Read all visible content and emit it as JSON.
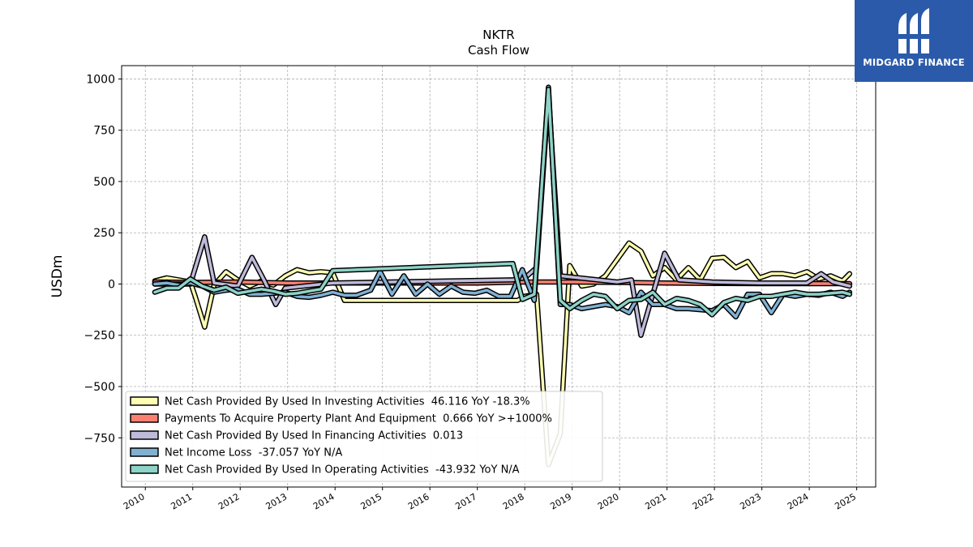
{
  "chart_data": {
    "type": "line",
    "title": "NKTR",
    "subtitle": "Cash Flow",
    "ylabel": "USDm",
    "xlabel": "",
    "xlim": [
      2009.5,
      2025.4
    ],
    "ylim": [
      -990,
      1065
    ],
    "x_ticks": [
      "2010",
      "2011",
      "2012",
      "2013",
      "2014",
      "2015",
      "2016",
      "2017",
      "2018",
      "2019",
      "2020",
      "2021",
      "2022",
      "2023",
      "2024",
      "2025"
    ],
    "y_ticks": [
      -750,
      -500,
      -250,
      0,
      250,
      500,
      750,
      1000
    ],
    "y_tick_labels": [
      "−750",
      "−500",
      "−250",
      "0",
      "250",
      "500",
      "750",
      "1000"
    ],
    "grid": true,
    "legend_position": "lower-left",
    "series": [
      {
        "name": "Net Cash Provided By Used In Investing Activities",
        "legend_suffix": "  46.116 YoY -18.3%",
        "color": "#ffffb3",
        "x": [
          2010.2,
          2010.45,
          2010.7,
          2010.95,
          2011.05,
          2011.25,
          2011.45,
          2011.7,
          2011.95,
          2012.2,
          2012.45,
          2012.7,
          2012.95,
          2013.2,
          2013.45,
          2013.7,
          2013.95,
          2014.2,
          2017.75,
          2017.85,
          2018.0,
          2018.25,
          2018.5,
          2018.75,
          2018.95,
          2019.2,
          2019.45,
          2019.7,
          2019.95,
          2020.2,
          2020.45,
          2020.7,
          2020.95,
          2021.2,
          2021.45,
          2021.7,
          2021.95,
          2022.2,
          2022.45,
          2022.7,
          2022.95,
          2023.2,
          2023.45,
          2023.7,
          2023.95,
          2024.2,
          2024.45,
          2024.7,
          2024.85
        ],
        "y": [
          15,
          30,
          20,
          10,
          -60,
          -210,
          -5,
          60,
          20,
          -10,
          15,
          -5,
          40,
          70,
          55,
          60,
          55,
          -80,
          -80,
          -80,
          -60,
          -50,
          -880,
          -730,
          90,
          -10,
          0,
          40,
          120,
          200,
          160,
          40,
          80,
          20,
          80,
          20,
          125,
          130,
          80,
          110,
          30,
          50,
          50,
          40,
          60,
          25,
          40,
          15,
          50
        ]
      },
      {
        "name": "Payments To Acquire Property Plant And Equipment",
        "legend_suffix": "  0.666 YoY >+1000%",
        "color": "#fb8072",
        "x": [
          2010.2,
          2011.0,
          2012.0,
          2013.0,
          2014.0,
          2015.0,
          2016.0,
          2017.0,
          2018.0,
          2019.0,
          2020.0,
          2021.0,
          2022.0,
          2023.0,
          2024.0,
          2024.85
        ],
        "y": [
          10,
          8,
          10,
          5,
          5,
          5,
          5,
          5,
          10,
          10,
          8,
          5,
          3,
          2,
          2,
          2
        ]
      },
      {
        "name": "Net Cash Provided By Used In Financing Activities",
        "legend_suffix": "  0.013",
        "color": "#bebada",
        "x": [
          2010.2,
          2010.95,
          2011.25,
          2011.45,
          2011.95,
          2012.25,
          2012.5,
          2012.75,
          2012.95,
          2013.95,
          2017.75,
          2018.0,
          2018.25,
          2018.5,
          2018.75,
          2019.95,
          2020.25,
          2020.45,
          2020.7,
          2020.95,
          2021.25,
          2021.95,
          2022.95,
          2023.95,
          2024.25,
          2024.5,
          2024.85
        ],
        "y": [
          0,
          0,
          230,
          5,
          -10,
          130,
          20,
          -100,
          -20,
          5,
          20,
          30,
          80,
          920,
          40,
          10,
          20,
          -250,
          -50,
          150,
          20,
          10,
          5,
          5,
          50,
          10,
          -10
        ]
      },
      {
        "name": "Net Income Loss",
        "legend_suffix": "  -37.057 YoY N/A",
        "color": "#80b1d3",
        "x": [
          2010.2,
          2010.45,
          2010.7,
          2010.95,
          2011.2,
          2011.45,
          2011.7,
          2011.95,
          2012.2,
          2012.45,
          2012.7,
          2012.95,
          2013.2,
          2013.45,
          2013.7,
          2013.95,
          2014.2,
          2014.45,
          2014.75,
          2014.95,
          2015.2,
          2015.45,
          2015.7,
          2015.95,
          2016.2,
          2016.45,
          2016.7,
          2016.95,
          2017.2,
          2017.45,
          2017.7,
          2017.95,
          2018.2,
          2018.5,
          2018.75,
          2018.95,
          2019.2,
          2019.45,
          2019.7,
          2019.95,
          2020.2,
          2020.45,
          2020.7,
          2020.95,
          2021.2,
          2021.45,
          2021.7,
          2021.95,
          2022.2,
          2022.45,
          2022.7,
          2022.95,
          2023.2,
          2023.45,
          2023.7,
          2023.95,
          2024.2,
          2024.45,
          2024.7,
          2024.85
        ],
        "y": [
          0,
          5,
          -5,
          5,
          -10,
          -40,
          -30,
          -25,
          -50,
          -50,
          -45,
          -40,
          -60,
          -65,
          -55,
          -40,
          -55,
          -55,
          -30,
          60,
          -50,
          40,
          -50,
          0,
          -50,
          -10,
          -40,
          -45,
          -30,
          -60,
          -60,
          70,
          -80,
          960,
          -100,
          -100,
          -120,
          -110,
          -100,
          -110,
          -140,
          -40,
          -100,
          -100,
          -120,
          -120,
          -125,
          -130,
          -100,
          -160,
          -50,
          -50,
          -140,
          -50,
          -60,
          -50,
          -55,
          -40,
          -60,
          -40
        ]
      },
      {
        "name": "Net Cash Provided By Used In Operating Activities",
        "legend_suffix": "  -43.932 YoY N/A",
        "color": "#8dd3c7",
        "x": [
          2010.2,
          2010.45,
          2010.7,
          2010.95,
          2011.2,
          2011.45,
          2011.7,
          2011.95,
          2012.2,
          2012.45,
          2012.7,
          2012.95,
          2013.2,
          2013.45,
          2013.7,
          2013.95,
          2017.75,
          2017.95,
          2018.2,
          2018.5,
          2018.75,
          2018.95,
          2019.2,
          2019.45,
          2019.7,
          2019.95,
          2020.2,
          2020.45,
          2020.7,
          2020.95,
          2021.2,
          2021.45,
          2021.7,
          2021.95,
          2022.2,
          2022.45,
          2022.7,
          2022.95,
          2023.2,
          2023.45,
          2023.7,
          2023.95,
          2024.2,
          2024.45,
          2024.7,
          2024.85
        ],
        "y": [
          -40,
          -20,
          -20,
          25,
          -10,
          -30,
          -15,
          -45,
          -35,
          -25,
          -35,
          -50,
          -45,
          -35,
          -25,
          65,
          100,
          -75,
          -50,
          950,
          -80,
          -120,
          -80,
          -50,
          -60,
          -120,
          -80,
          -75,
          -40,
          -100,
          -70,
          -80,
          -100,
          -150,
          -90,
          -70,
          -80,
          -60,
          -60,
          -50,
          -40,
          -50,
          -50,
          -45,
          -40,
          -50
        ]
      }
    ]
  },
  "logo": {
    "text": "MIDGARD FINANCE"
  }
}
